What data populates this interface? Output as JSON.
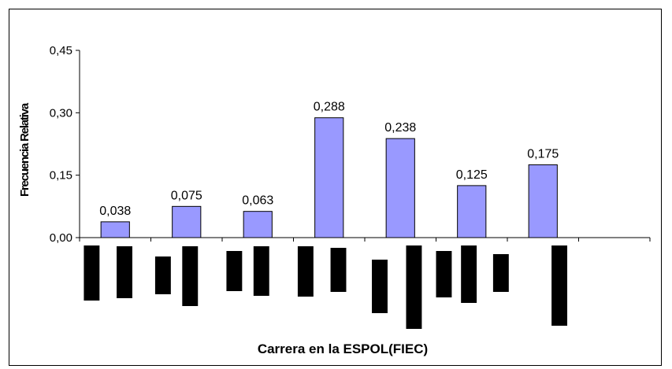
{
  "chart_data": {
    "type": "bar",
    "title": "",
    "xlabel": "Carrera en la ESPOL(FIEC)",
    "ylabel": "Frecuencia Relativa",
    "categories": [
      "",
      "",
      "",
      "",
      "",
      "",
      ""
    ],
    "values": [
      0.038,
      0.075,
      0.063,
      0.288,
      0.238,
      0.125,
      0.175
    ],
    "data_labels": [
      "0,038",
      "0,075",
      "0,063",
      "0,288",
      "0,238",
      "0,125",
      "0,175"
    ],
    "ylim": [
      0,
      0.45
    ],
    "yticks": [
      0,
      0.15,
      0.3,
      0.45
    ],
    "ytick_labels": [
      "0,00",
      "0,15",
      "0,30",
      "0,45"
    ],
    "grid": false,
    "legend": "none",
    "bar_color": "#9999ff",
    "category_labels_redacted": true,
    "redaction_color": "#000000"
  }
}
